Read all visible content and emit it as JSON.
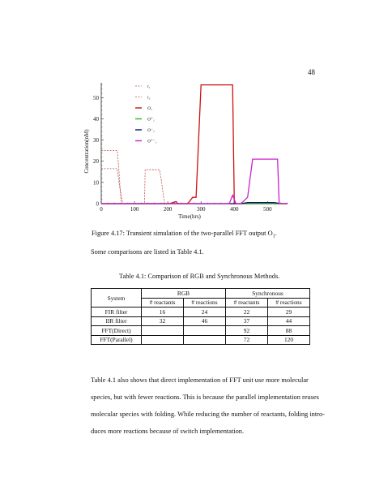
{
  "page_number": "48",
  "figure": {
    "caption": "Figure 4.17: Transient simulation of the two-parallel FFT output O",
    "caption_subscript": "1",
    "caption_end": "."
  },
  "chart_data": {
    "type": "line",
    "xlabel": "Time(hrs)",
    "ylabel": "Concentration(nM)",
    "xlim": [
      0,
      560
    ],
    "ylim": [
      0,
      57
    ],
    "xticks": [
      "0",
      "100",
      "200",
      "300",
      "400",
      "500"
    ],
    "yticks": [
      "0",
      "10",
      "20",
      "30",
      "40",
      "50"
    ],
    "grid": false,
    "legend_position": "top-center",
    "series": [
      {
        "name": "t₁",
        "color": "#c0504d",
        "style": "dashed",
        "x": [
          0,
          48,
          52,
          60,
          130,
          132,
          140,
          175,
          180,
          190,
          560
        ],
        "y": [
          25,
          25,
          18,
          0,
          0,
          16,
          16,
          16,
          12,
          0,
          0
        ]
      },
      {
        "name": "t₂",
        "color": "#c0504d",
        "style": "dashed",
        "x": [
          0,
          48,
          55,
          65,
          560
        ],
        "y": [
          16.5,
          16.5,
          8,
          0,
          0
        ]
      },
      {
        "name": "O₁",
        "color": "#cc1111",
        "style": "solid",
        "x": [
          0,
          205,
          225,
          230,
          260,
          275,
          285,
          300,
          395,
          400,
          560
        ],
        "y": [
          0,
          0,
          1,
          0,
          0,
          3,
          3,
          56,
          56,
          0,
          0
        ]
      },
      {
        "name": "O⁺₁",
        "color": "#22bb22",
        "style": "solid",
        "x": [
          0,
          560
        ],
        "y": [
          0,
          0
        ]
      },
      {
        "name": "O⁻₁",
        "color": "#111166",
        "style": "solid",
        "x": [
          0,
          420,
          440,
          520,
          540,
          560
        ],
        "y": [
          0,
          0,
          0.5,
          0.5,
          0,
          0
        ]
      },
      {
        "name": "O⁺⁻₁",
        "color": "#cc22cc",
        "style": "solid",
        "x": [
          0,
          385,
          395,
          405,
          420,
          440,
          455,
          530,
          535,
          560
        ],
        "y": [
          0,
          0,
          4,
          0,
          0,
          3,
          21,
          21,
          0,
          0
        ]
      }
    ]
  },
  "intro_text": "Some comparisons are listed in Table 4.1.",
  "table": {
    "caption": "Table 4.1: Comparison of RGB and Synchronous Methods.",
    "system_header": "System",
    "group_headers": [
      "RGB",
      "Synchronous"
    ],
    "sub_headers": [
      "# reactants",
      "# reactions",
      "# reactants",
      "# reactions"
    ],
    "rows": [
      {
        "system": "FIR filter",
        "cells": [
          "16",
          "24",
          "22",
          "29"
        ]
      },
      {
        "system": "IIR filter",
        "cells": [
          "32",
          "46",
          "37",
          "44"
        ]
      },
      {
        "system": "FFT(Direct)",
        "cells": [
          "",
          "",
          "92",
          "88"
        ]
      },
      {
        "system": "FFT(Parallel)",
        "cells": [
          "",
          "",
          "72",
          "120"
        ]
      }
    ]
  },
  "paragraph_lines": [
    "Table 4.1 also shows that direct implementation of FFT unit use more molecular",
    "species, but with fewer reactions. This is because the parallel implementation reuses",
    "molecular species with folding. While reducing the number of reactants, folding intro-",
    "duces more reactions because of switch implementation."
  ]
}
